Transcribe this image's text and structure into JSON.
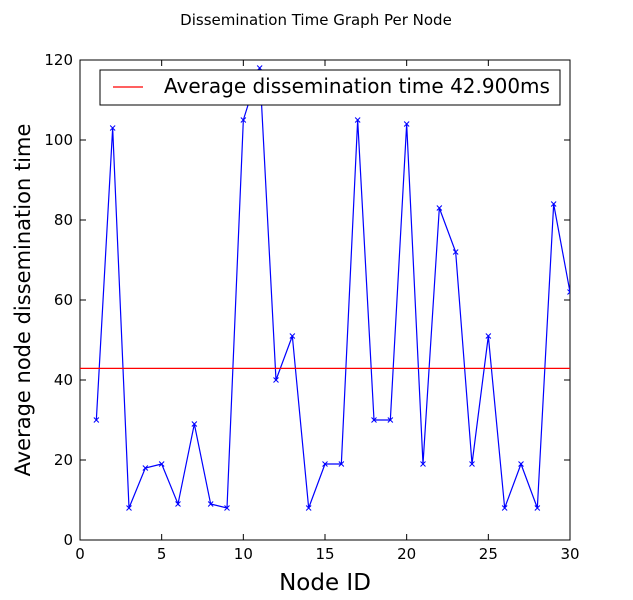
{
  "chart_data": {
    "type": "line",
    "title": "Dissemination Time Graph Per Node",
    "xlabel": "Node ID",
    "ylabel": "Average node dissemination time",
    "xlim": [
      0,
      30
    ],
    "ylim": [
      0,
      120
    ],
    "xticks": [
      "0",
      "5",
      "10",
      "15",
      "20",
      "25",
      "30"
    ],
    "yticks": [
      "0",
      "20",
      "40",
      "60",
      "80",
      "100",
      "120"
    ],
    "grid": false,
    "legend_position": "top-right",
    "series": [
      {
        "x": [
          1,
          2,
          3,
          4,
          5,
          6,
          7,
          8,
          9,
          10,
          11,
          12,
          13,
          14,
          15,
          16,
          17,
          18,
          19,
          20,
          21,
          22,
          23,
          24,
          25,
          26,
          27,
          28,
          29,
          30
        ],
        "values": [
          30,
          103,
          8,
          18,
          19,
          9,
          29,
          9,
          8,
          105,
          118,
          40,
          51,
          8,
          19,
          19,
          105,
          30,
          30,
          104,
          19,
          83,
          72,
          19,
          51,
          8,
          19,
          8,
          84,
          62
        ],
        "color": "#0000ff",
        "marker": "x"
      }
    ],
    "reference_lines": [
      {
        "name": "Average dissemination time 42.900ms",
        "y": 42.9,
        "color": "#ff0000"
      }
    ]
  }
}
